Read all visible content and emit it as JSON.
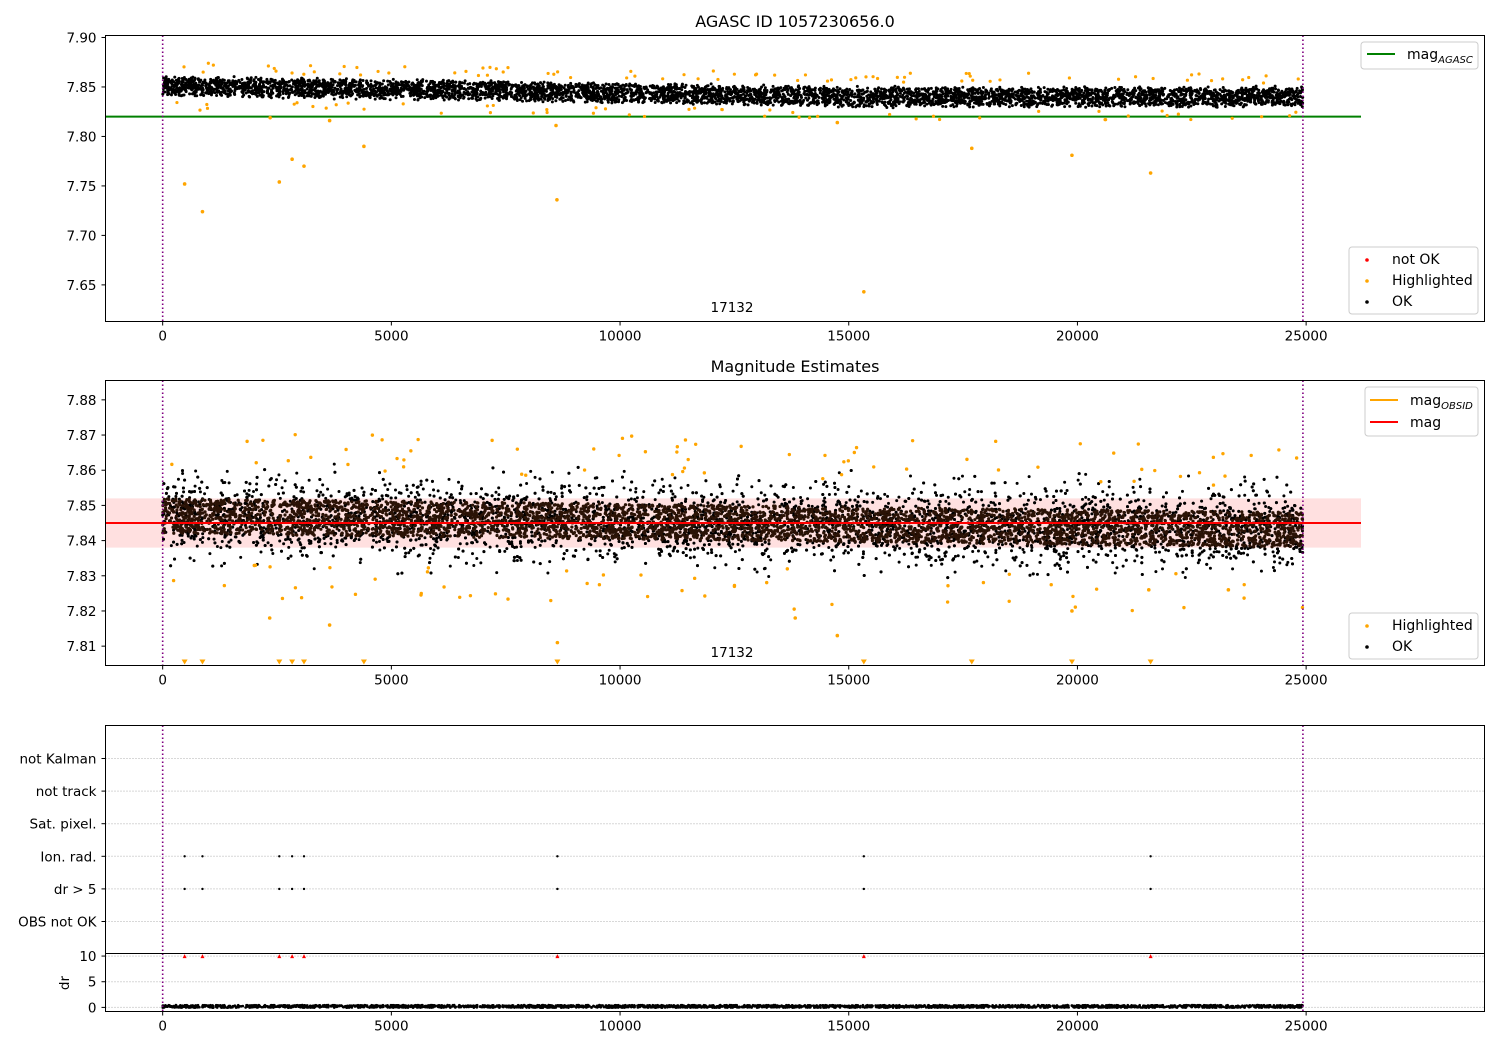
{
  "chart_data": [
    {
      "type": "scatter",
      "title": "AGASC ID 1057230656.0",
      "xlabel": "",
      "ylabel": "",
      "xlim": [
        -1250,
        28900
      ],
      "ylim": [
        7.613,
        7.902
      ],
      "x_ticks": [
        0,
        5000,
        10000,
        15000,
        20000,
        25000
      ],
      "x_tick_labels": [
        "0",
        "5000",
        "10000",
        "15000",
        "20000",
        "25000"
      ],
      "y_ticks": [
        7.65,
        7.7,
        7.75,
        7.8,
        7.85,
        7.9
      ],
      "y_tick_labels": [
        "7.65",
        "7.70",
        "7.75",
        "7.80",
        "7.85",
        "7.90"
      ],
      "annotation": "17132",
      "vlines": [
        0,
        24930
      ],
      "hline": {
        "name": "magAGASC",
        "value": 7.82,
        "x_range": [
          -1250,
          26200
        ],
        "color": "#008000"
      },
      "ok_band": {
        "x_start": 0,
        "x_end": 24930,
        "early_center": 7.851,
        "late_center": 7.84,
        "halfwidth": 0.011
      },
      "highlighted_outliers": [
        {
          "x": 480,
          "y": 7.752
        },
        {
          "x": 870,
          "y": 7.724
        },
        {
          "x": 2550,
          "y": 7.754
        },
        {
          "x": 2830,
          "y": 7.777
        },
        {
          "x": 3090,
          "y": 7.77
        },
        {
          "x": 3650,
          "y": 7.816
        },
        {
          "x": 4400,
          "y": 7.79
        },
        {
          "x": 8620,
          "y": 7.736
        },
        {
          "x": 8600,
          "y": 7.811
        },
        {
          "x": 14750,
          "y": 7.814
        },
        {
          "x": 15330,
          "y": 7.643
        },
        {
          "x": 17690,
          "y": 7.788
        },
        {
          "x": 19880,
          "y": 7.781
        },
        {
          "x": 21600,
          "y": 7.763
        },
        {
          "x": 2350,
          "y": 7.819
        }
      ],
      "legend_top": [
        {
          "label": "mag",
          "sub": "AGASC",
          "color": "#008000"
        }
      ],
      "legend_bottom": [
        {
          "label": "not OK",
          "color": "#ff0000"
        },
        {
          "label": "Highlighted",
          "color": "#ffa500"
        },
        {
          "label": "OK",
          "color": "#000000"
        }
      ],
      "legend_top_position": "upper right",
      "legend_bottom_position": "lower right",
      "grid": false
    },
    {
      "type": "scatter",
      "title": "Magnitude Estimates",
      "xlabel": "",
      "ylabel": "",
      "xlim": [
        -1250,
        28900
      ],
      "ylim": [
        7.8045,
        7.8855
      ],
      "x_ticks": [
        0,
        5000,
        10000,
        15000,
        20000,
        25000
      ],
      "x_tick_labels": [
        "0",
        "5000",
        "10000",
        "15000",
        "20000",
        "25000"
      ],
      "y_ticks": [
        7.81,
        7.82,
        7.83,
        7.84,
        7.85,
        7.86,
        7.87,
        7.88
      ],
      "y_tick_labels": [
        "7.81",
        "7.82",
        "7.83",
        "7.84",
        "7.85",
        "7.86",
        "7.87",
        "7.88"
      ],
      "annotation": "17132",
      "vlines": [
        0,
        24930
      ],
      "mag_line": {
        "name": "mag",
        "value": 7.845,
        "x_range": [
          -1250,
          26200
        ],
        "color": "#ff0000"
      },
      "mag_band": {
        "low": 7.838,
        "high": 7.852,
        "x_range": [
          -1250,
          26200
        ]
      },
      "ok_band": {
        "x_start": 0,
        "x_end": 24930,
        "early_center": 7.847,
        "late_center": 7.843,
        "core_halfwidth": 0.005,
        "spread_halfwidth": 0.013
      },
      "highlighted_outliers": [
        {
          "x": 2340,
          "y": 7.818
        },
        {
          "x": 3650,
          "y": 7.816
        },
        {
          "x": 8630,
          "y": 7.811
        },
        {
          "x": 14750,
          "y": 7.813
        },
        {
          "x": 13830,
          "y": 7.818
        },
        {
          "x": 19880,
          "y": 7.82
        },
        {
          "x": 21560,
          "y": 7.826
        },
        {
          "x": 23300,
          "y": 7.826
        }
      ],
      "lower_limit_markers": [
        480,
        870,
        2550,
        2830,
        3090,
        4400,
        8630,
        15330,
        17690,
        19880,
        21600
      ],
      "legend_top": [
        {
          "label": "mag",
          "sub": "OBSID",
          "color": "#ffa500"
        },
        {
          "label": "mag",
          "sub": "",
          "color": "#ff0000"
        }
      ],
      "legend_bottom": [
        {
          "label": "Highlighted",
          "color": "#ffa500"
        },
        {
          "label": "OK",
          "color": "#000000"
        }
      ],
      "legend_top_position": "upper right",
      "legend_bottom_position": "lower right",
      "grid": false
    },
    {
      "type": "scatter",
      "title": "",
      "xlabel": "",
      "ylabel": "",
      "xlim": [
        -1250,
        28900
      ],
      "category_labels": [
        "not Kalman",
        "not track",
        "Sat. pixel.",
        "Ion. rad.",
        "dr > 5",
        "OBS not OK"
      ],
      "flag_events": {
        "Ion. rad.": [
          480,
          870,
          2550,
          2830,
          3090,
          8630,
          15330,
          21600
        ],
        "dr > 5": [
          480,
          870,
          2550,
          2830,
          3090,
          8630,
          15330,
          21600
        ]
      },
      "vlines": [
        0,
        24930
      ],
      "grid": true
    },
    {
      "type": "scatter",
      "title": "",
      "xlabel": "",
      "ylabel": "dr",
      "xlim": [
        -1250,
        28900
      ],
      "ylim": [
        -0.8,
        10.5
      ],
      "x_ticks": [
        0,
        5000,
        10000,
        15000,
        20000,
        25000
      ],
      "x_tick_labels": [
        "0",
        "5000",
        "10000",
        "15000",
        "20000",
        "25000"
      ],
      "y_ticks": [
        0,
        5,
        10
      ],
      "y_tick_labels": [
        "0",
        "5",
        "10"
      ],
      "dr_baseline": {
        "x_start": 0,
        "x_end": 24930,
        "typical": 0.2,
        "spread": 0.25
      },
      "capped_points": [
        480,
        870,
        2550,
        2830,
        3090,
        8630,
        15330,
        21600
      ],
      "cap_value": 10,
      "vlines": [
        0,
        24930
      ],
      "grid": true
    }
  ]
}
